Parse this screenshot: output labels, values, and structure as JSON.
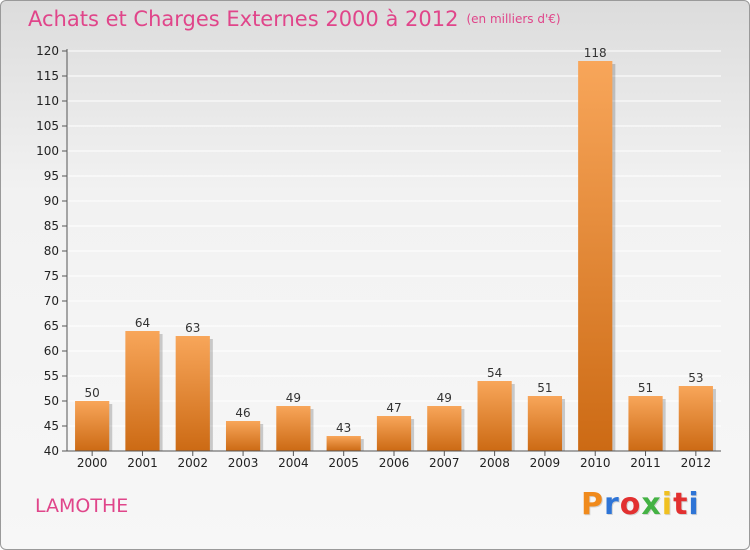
{
  "header": {
    "title": "Achats et Charges Externes 2000 à 2012",
    "subtitle": "(en milliers d'€)"
  },
  "footer": {
    "commune": "LAMOTHE",
    "logo": "Proxiti",
    "logo_colors": [
      "#f08a1c",
      "#2e74d6",
      "#e23030",
      "#44b244",
      "#f0c020",
      "#e23030",
      "#2e74d6"
    ]
  },
  "colors": {
    "bar_top": "#f8a65a",
    "bar_bottom": "#cc6a14",
    "title": "#e0458a",
    "grid": "#ffffff"
  },
  "chart_data": {
    "type": "bar",
    "categories": [
      "2000",
      "2001",
      "2002",
      "2003",
      "2004",
      "2005",
      "2006",
      "2007",
      "2008",
      "2009",
      "2010",
      "2011",
      "2012"
    ],
    "values": [
      50,
      64,
      63,
      46,
      49,
      43,
      47,
      49,
      54,
      51,
      118,
      51,
      53
    ],
    "title": "Achats et Charges Externes 2000 à 2012",
    "subtitle": "(en milliers d'€)",
    "ylim": [
      40,
      120
    ],
    "yticks": [
      40,
      45,
      50,
      55,
      60,
      65,
      70,
      75,
      80,
      85,
      90,
      95,
      100,
      105,
      110,
      115,
      120
    ],
    "grid": true,
    "legend": "none"
  }
}
